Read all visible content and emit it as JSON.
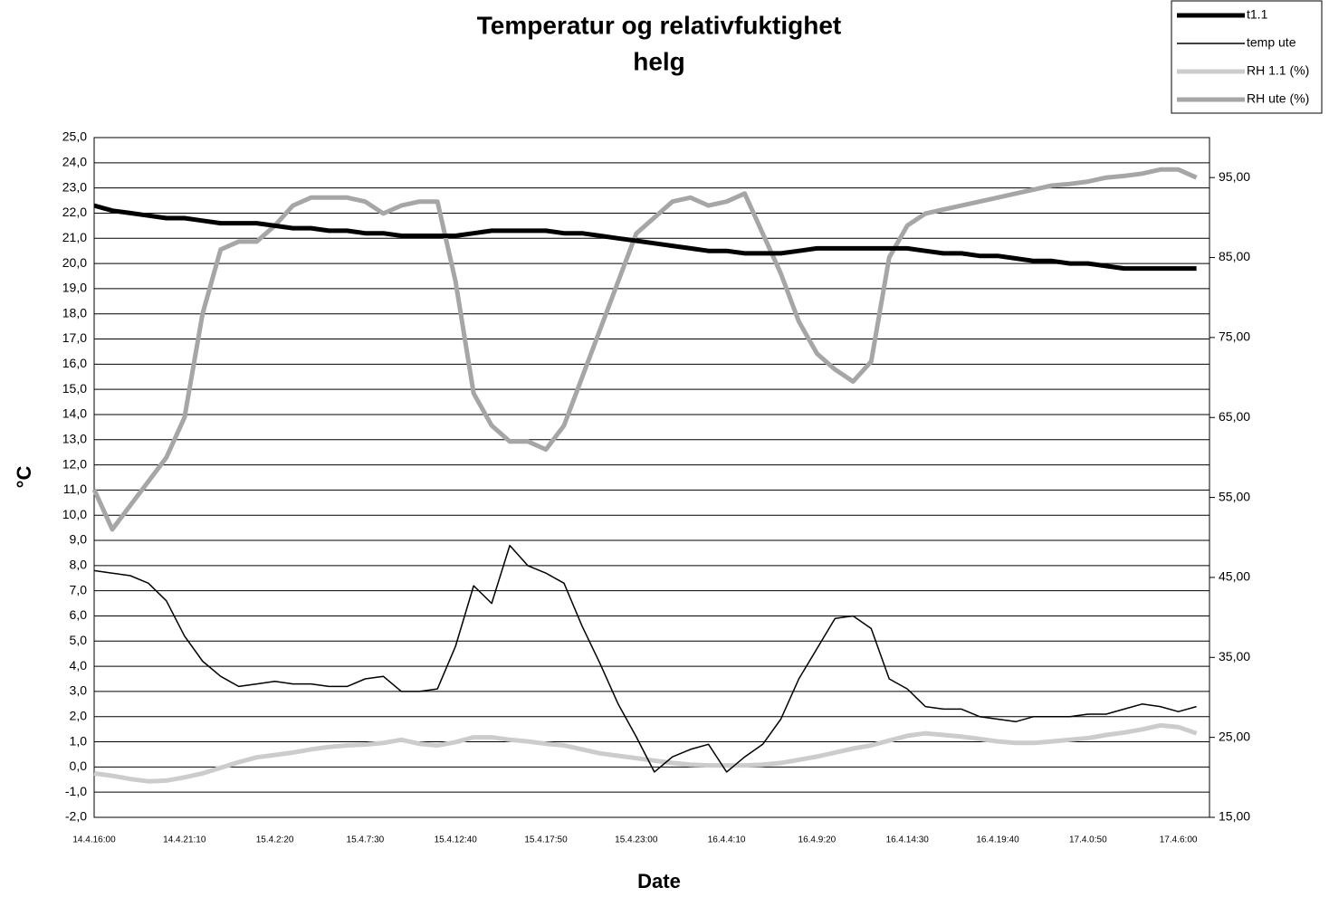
{
  "chart_data": {
    "type": "line",
    "title": "Temperatur og relativfuktighet",
    "subtitle": "helg",
    "xlabel": "Date",
    "ylabel": "°C",
    "categories": [
      "14.4.16:00",
      null,
      null,
      null,
      null,
      "14.4.21:10",
      null,
      null,
      null,
      null,
      "15.4.2:20",
      null,
      null,
      null,
      null,
      "15.4.7:30",
      null,
      null,
      null,
      null,
      "15.4.12:40",
      null,
      null,
      null,
      null,
      "15.4.17:50",
      null,
      null,
      null,
      null,
      "15.4.23:00",
      null,
      null,
      null,
      null,
      "16.4.4:10",
      null,
      null,
      null,
      null,
      "16.4.9:20",
      null,
      null,
      null,
      null,
      "16.4.14:30",
      null,
      null,
      null,
      null,
      "16.4.19:40",
      null,
      null,
      null,
      null,
      "17.4.0:50",
      null,
      null,
      null,
      null,
      "17.4.6:00",
      null
    ],
    "series": [
      {
        "name": "t1.1",
        "color": "#000000",
        "width": 5,
        "values": [
          22.3,
          22.1,
          22.0,
          21.9,
          21.8,
          21.8,
          21.7,
          21.6,
          21.6,
          21.6,
          21.5,
          21.4,
          21.4,
          21.3,
          21.3,
          21.2,
          21.2,
          21.1,
          21.1,
          21.1,
          21.1,
          21.2,
          21.3,
          21.3,
          21.3,
          21.3,
          21.2,
          21.2,
          21.1,
          21.0,
          20.9,
          20.8,
          20.7,
          20.6,
          20.5,
          20.5,
          20.4,
          20.4,
          20.4,
          20.5,
          20.6,
          20.6,
          20.6,
          20.6,
          20.6,
          20.6,
          20.5,
          20.4,
          20.4,
          20.3,
          20.3,
          20.2,
          20.1,
          20.1,
          20.0,
          20.0,
          19.9,
          19.8,
          19.8,
          19.8,
          19.8,
          19.8
        ]
      },
      {
        "name": "temp ute",
        "color": "#000000",
        "width": 1.5,
        "values": [
          7.8,
          7.7,
          7.6,
          7.3,
          6.6,
          5.2,
          4.2,
          3.6,
          3.2,
          3.3,
          3.4,
          3.3,
          3.3,
          3.2,
          3.2,
          3.5,
          3.6,
          3.0,
          3.0,
          3.1,
          4.8,
          7.2,
          6.5,
          8.8,
          8.0,
          7.7,
          7.3,
          5.6,
          4.1,
          2.5,
          1.2,
          -0.2,
          0.4,
          0.7,
          0.9,
          -0.2,
          0.4,
          0.9,
          1.9,
          3.5,
          4.7,
          5.9,
          6.0,
          5.5,
          3.5,
          3.1,
          2.4,
          2.3,
          2.3,
          2.0,
          1.9,
          1.8,
          2.0,
          2.0,
          2.0,
          2.1,
          2.1,
          2.3,
          2.5,
          2.4,
          2.2,
          2.4
        ]
      },
      {
        "name": "RH 1.1 (%)",
        "color": "#cccccc",
        "width": 5,
        "axis": "y2",
        "values": [
          20.5,
          20.2,
          19.8,
          19.5,
          19.6,
          20,
          20.5,
          21.2,
          21.9,
          22.5,
          22.8,
          23.1,
          23.5,
          23.8,
          24,
          24.1,
          24.3,
          24.7,
          24.2,
          24,
          24.4,
          25,
          25,
          24.7,
          24.5,
          24.2,
          24,
          23.5,
          23,
          22.7,
          22.4,
          22.1,
          21.8,
          21.6,
          21.5,
          21.5,
          21.5,
          21.6,
          21.8,
          22.2,
          22.6,
          23.1,
          23.6,
          24,
          24.6,
          25.2,
          25.5,
          25.3,
          25.1,
          24.8,
          24.5,
          24.3,
          24.3,
          24.5,
          24.7,
          24.9,
          25.3,
          25.6,
          26,
          26.5,
          26.3,
          25.5
        ]
      },
      {
        "name": "RH ute (%)",
        "color": "#a6a6a6",
        "width": 5,
        "axis": "y2",
        "values": [
          56,
          51,
          54,
          57,
          60,
          65,
          78,
          86,
          87,
          87,
          89,
          91.5,
          92.5,
          92.5,
          92.5,
          92,
          90.5,
          91.5,
          92,
          92,
          82,
          68,
          64,
          62,
          62,
          61,
          64,
          70,
          76,
          82,
          88,
          90,
          92,
          92.5,
          91.5,
          92,
          93,
          88,
          83,
          77,
          73,
          71,
          69.5,
          72,
          85,
          89,
          90.5,
          91,
          91.5,
          92,
          92.5,
          93,
          93.5,
          94,
          94.2,
          94.5,
          95,
          95.2,
          95.5,
          96,
          96,
          95
        ]
      }
    ],
    "ylim": [
      -2,
      25
    ],
    "yticks": [
      {
        "value": -2,
        "label": "-2,0"
      },
      {
        "value": -1,
        "label": "-1,0"
      },
      {
        "value": 0,
        "label": "0,0"
      },
      {
        "value": 1,
        "label": "1,0"
      },
      {
        "value": 2,
        "label": "2,0"
      },
      {
        "value": 3,
        "label": "3,0"
      },
      {
        "value": 4,
        "label": "4,0"
      },
      {
        "value": 5,
        "label": "5,0"
      },
      {
        "value": 6,
        "label": "6,0"
      },
      {
        "value": 7,
        "label": "7,0"
      },
      {
        "value": 8,
        "label": "8,0"
      },
      {
        "value": 9,
        "label": "9,0"
      },
      {
        "value": 10,
        "label": "10,0"
      },
      {
        "value": 11,
        "label": "11,0"
      },
      {
        "value": 12,
        "label": "12,0"
      },
      {
        "value": 13,
        "label": "13,0"
      },
      {
        "value": 14,
        "label": "14,0"
      },
      {
        "value": 15,
        "label": "15,0"
      },
      {
        "value": 16,
        "label": "16,0"
      },
      {
        "value": 17,
        "label": "17,0"
      },
      {
        "value": 18,
        "label": "18,0"
      },
      {
        "value": 19,
        "label": "19,0"
      },
      {
        "value": 20,
        "label": "20,0"
      },
      {
        "value": 21,
        "label": "21,0"
      },
      {
        "value": 22,
        "label": "22,0"
      },
      {
        "value": 23,
        "label": "23,0"
      },
      {
        "value": 24,
        "label": "24,0"
      },
      {
        "value": 25,
        "label": "25,0"
      }
    ],
    "y2lim": [
      15,
      100
    ],
    "y2ticks": [
      {
        "value": 15,
        "label": "15,00"
      },
      {
        "value": 25,
        "label": "25,00"
      },
      {
        "value": 35,
        "label": "35,00"
      },
      {
        "value": 45,
        "label": "45,00"
      },
      {
        "value": 55,
        "label": "55,00"
      },
      {
        "value": 65,
        "label": "65,00"
      },
      {
        "value": 75,
        "label": "75,00"
      },
      {
        "value": 85,
        "label": "85,00"
      },
      {
        "value": 95,
        "label": "95,00"
      }
    ],
    "grid": true,
    "legend": "top-right"
  }
}
